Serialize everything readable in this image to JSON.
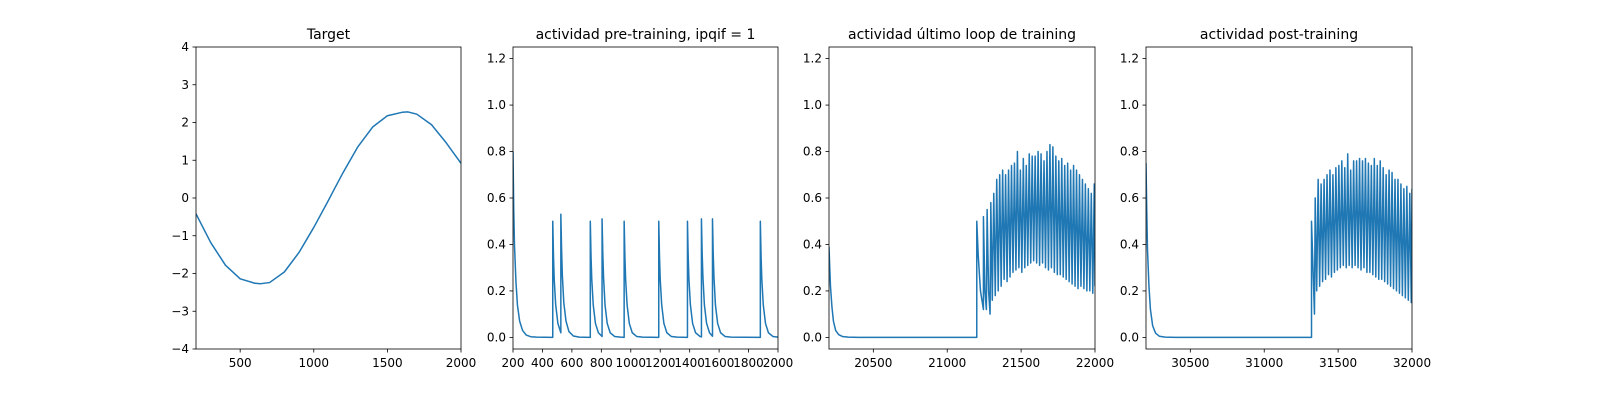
{
  "chart_data": [
    {
      "type": "line",
      "title": "Target",
      "xlabel": "",
      "ylabel": "",
      "xlim": [
        200,
        2000
      ],
      "ylim": [
        -4,
        4
      ],
      "xticks": [
        500,
        1000,
        1500,
        2000
      ],
      "yticks": [
        -4,
        -3,
        -2,
        -1,
        0,
        1,
        2,
        3,
        4
      ],
      "grid": false,
      "color": "#1f77b4",
      "series": [
        {
          "x": [
            200,
            300,
            400,
            500,
            600,
            640,
            700,
            800,
            900,
            1000,
            1100,
            1140,
            1200,
            1300,
            1400,
            1500,
            1600,
            1640,
            1700,
            1800,
            1900,
            2000
          ],
          "y": [
            -0.42,
            -1.18,
            -1.78,
            -2.14,
            -2.26,
            -2.27,
            -2.24,
            -1.96,
            -1.44,
            -0.78,
            -0.06,
            0.24,
            0.68,
            1.36,
            1.88,
            2.18,
            2.27,
            2.28,
            2.22,
            1.94,
            1.46,
            0.92
          ]
        }
      ]
    },
    {
      "type": "line",
      "title": "actividad pre-training, ipqif = 1",
      "xlabel": "",
      "ylabel": "",
      "xlim": [
        200,
        2000
      ],
      "ylim": [
        -0.05,
        1.25
      ],
      "xticks": [
        200,
        400,
        600,
        800,
        1000,
        1200,
        1400,
        1600,
        1800,
        2000
      ],
      "yticks": [
        0.0,
        0.2,
        0.4,
        0.6,
        0.8,
        1.0,
        1.2
      ],
      "grid": false,
      "color": "#1f77b4",
      "series": [
        {
          "x": [
            200,
            205,
            210,
            220,
            230,
            245,
            265,
            290,
            320,
            360,
            470,
            470,
            475,
            480,
            490,
            505,
            525,
            525,
            530,
            535,
            545,
            560,
            580,
            610,
            650,
            725,
            725,
            730,
            735,
            745,
            760,
            780,
            805,
            805,
            810,
            815,
            825,
            840,
            860,
            890,
            930,
            955,
            955,
            960,
            965,
            975,
            990,
            1010,
            1040,
            1080,
            1190,
            1190,
            1195,
            1200,
            1210,
            1225,
            1245,
            1275,
            1315,
            1385,
            1385,
            1390,
            1395,
            1405,
            1420,
            1440,
            1470,
            1480,
            1480,
            1485,
            1490,
            1500,
            1515,
            1535,
            1555,
            1555,
            1560,
            1565,
            1575,
            1590,
            1610,
            1640,
            1680,
            1880,
            1880,
            1885,
            1890,
            1900,
            1915,
            1935,
            1965,
            2000
          ],
          "y": [
            0.8,
            0.55,
            0.4,
            0.24,
            0.14,
            0.07,
            0.03,
            0.01,
            0.003,
            0.001,
            0.0,
            0.5,
            0.35,
            0.25,
            0.14,
            0.06,
            0.02,
            0.53,
            0.38,
            0.27,
            0.15,
            0.07,
            0.025,
            0.006,
            0.001,
            0.0,
            0.5,
            0.35,
            0.25,
            0.14,
            0.06,
            0.02,
            0.004,
            0.51,
            0.36,
            0.26,
            0.14,
            0.06,
            0.02,
            0.004,
            0.001,
            0.0,
            0.5,
            0.35,
            0.25,
            0.14,
            0.06,
            0.02,
            0.004,
            0.001,
            0.0,
            0.5,
            0.35,
            0.25,
            0.14,
            0.06,
            0.02,
            0.004,
            0.001,
            0.0,
            0.5,
            0.35,
            0.25,
            0.14,
            0.06,
            0.02,
            0.004,
            0.002,
            0.51,
            0.36,
            0.26,
            0.14,
            0.06,
            0.02,
            0.005,
            0.51,
            0.36,
            0.26,
            0.14,
            0.06,
            0.02,
            0.004,
            0.001,
            0.0,
            0.5,
            0.35,
            0.25,
            0.14,
            0.06,
            0.02,
            0.004,
            0.001
          ]
        }
      ]
    },
    {
      "type": "line",
      "title": "actividad último loop de training",
      "xlabel": "",
      "ylabel": "",
      "xlim": [
        20200,
        22000
      ],
      "ylim": [
        -0.05,
        1.25
      ],
      "xticks": [
        20500,
        21000,
        21500,
        22000
      ],
      "yticks": [
        0.0,
        0.2,
        0.4,
        0.6,
        0.8,
        1.0,
        1.2
      ],
      "grid": false,
      "color": "#1f77b4",
      "series": [
        {
          "x": [
            20200,
            20205,
            20210,
            20220,
            20230,
            20245,
            20265,
            20290,
            20330,
            20400,
            21200,
            21200,
            21210,
            21225,
            21245,
            21245,
            21255,
            21265,
            21270,
            21280,
            21290,
            21295,
            21305,
            21315,
            21325,
            21335,
            21345,
            21355,
            21365,
            21375,
            21385,
            21395,
            21405,
            21415,
            21425,
            21435,
            21445,
            21455,
            21465,
            21475,
            21485,
            21495,
            21505,
            21515,
            21525,
            21535,
            21545,
            21555,
            21565,
            21575,
            21585,
            21595,
            21605,
            21615,
            21625,
            21635,
            21645,
            21655,
            21665,
            21675,
            21685,
            21695,
            21705,
            21715,
            21725,
            21735,
            21745,
            21755,
            21765,
            21775,
            21785,
            21795,
            21805,
            21815,
            21825,
            21835,
            21845,
            21855,
            21865,
            21875,
            21885,
            21895,
            21905,
            21915,
            21925,
            21935,
            21945,
            21955,
            21965,
            21975,
            21985,
            21995,
            22000
          ],
          "y": [
            0.39,
            0.3,
            0.22,
            0.13,
            0.07,
            0.03,
            0.012,
            0.004,
            0.001,
            0.0,
            0.0,
            0.5,
            0.35,
            0.2,
            0.12,
            0.52,
            0.2,
            0.12,
            0.55,
            0.2,
            0.1,
            0.58,
            0.16,
            0.62,
            0.18,
            0.68,
            0.2,
            0.7,
            0.22,
            0.72,
            0.25,
            0.7,
            0.24,
            0.72,
            0.26,
            0.74,
            0.28,
            0.75,
            0.29,
            0.8,
            0.3,
            0.72,
            0.28,
            0.77,
            0.3,
            0.74,
            0.31,
            0.79,
            0.32,
            0.78,
            0.33,
            0.78,
            0.32,
            0.8,
            0.31,
            0.79,
            0.32,
            0.76,
            0.3,
            0.8,
            0.29,
            0.83,
            0.3,
            0.82,
            0.28,
            0.78,
            0.27,
            0.76,
            0.27,
            0.77,
            0.26,
            0.74,
            0.25,
            0.75,
            0.24,
            0.72,
            0.23,
            0.74,
            0.22,
            0.72,
            0.21,
            0.7,
            0.22,
            0.68,
            0.21,
            0.66,
            0.2,
            0.64,
            0.2,
            0.62,
            0.19,
            0.66,
            0.22
          ]
        }
      ]
    },
    {
      "type": "line",
      "title": "actividad post-training",
      "xlabel": "",
      "ylabel": "",
      "xlim": [
        30200,
        32000
      ],
      "ylim": [
        -0.05,
        1.25
      ],
      "xticks": [
        30500,
        31000,
        31500,
        32000
      ],
      "yticks": [
        0.0,
        0.2,
        0.4,
        0.6,
        0.8,
        1.0,
        1.2
      ],
      "grid": false,
      "color": "#1f77b4",
      "series": [
        {
          "x": [
            30200,
            30205,
            30210,
            30220,
            30230,
            30245,
            30265,
            30290,
            30330,
            30400,
            31320,
            31320,
            31330,
            31340,
            31345,
            31355,
            31365,
            31375,
            31385,
            31395,
            31405,
            31415,
            31425,
            31435,
            31445,
            31455,
            31465,
            31475,
            31485,
            31495,
            31505,
            31515,
            31525,
            31535,
            31545,
            31555,
            31565,
            31575,
            31585,
            31595,
            31605,
            31615,
            31625,
            31635,
            31645,
            31655,
            31665,
            31675,
            31685,
            31695,
            31705,
            31715,
            31725,
            31735,
            31745,
            31755,
            31765,
            31775,
            31785,
            31795,
            31805,
            31815,
            31825,
            31835,
            31845,
            31855,
            31865,
            31875,
            31885,
            31895,
            31905,
            31915,
            31925,
            31935,
            31945,
            31955,
            31965,
            31975,
            31985,
            31995,
            32000
          ],
          "y": [
            0.75,
            0.55,
            0.38,
            0.22,
            0.12,
            0.05,
            0.018,
            0.005,
            0.001,
            0.0,
            0.0,
            0.5,
            0.3,
            0.1,
            0.6,
            0.2,
            0.68,
            0.22,
            0.66,
            0.24,
            0.68,
            0.25,
            0.7,
            0.27,
            0.72,
            0.26,
            0.7,
            0.28,
            0.73,
            0.29,
            0.74,
            0.3,
            0.76,
            0.31,
            0.73,
            0.3,
            0.79,
            0.31,
            0.72,
            0.3,
            0.76,
            0.31,
            0.76,
            0.3,
            0.77,
            0.29,
            0.76,
            0.3,
            0.77,
            0.28,
            0.75,
            0.28,
            0.74,
            0.27,
            0.77,
            0.26,
            0.74,
            0.25,
            0.76,
            0.25,
            0.73,
            0.24,
            0.7,
            0.23,
            0.72,
            0.22,
            0.71,
            0.21,
            0.68,
            0.2,
            0.68,
            0.19,
            0.66,
            0.18,
            0.64,
            0.17,
            0.65,
            0.16,
            0.62,
            0.15,
            0.64
          ]
        }
      ]
    }
  ]
}
